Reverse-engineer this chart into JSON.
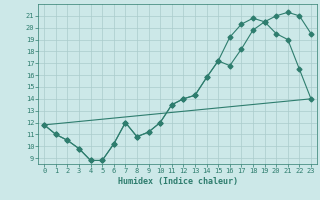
{
  "xlabel": "Humidex (Indice chaleur)",
  "bg_color": "#cce8e8",
  "grid_color": "#aacccc",
  "line_color": "#2e7d6e",
  "xlim": [
    -0.5,
    23.5
  ],
  "ylim": [
    8.5,
    22.0
  ],
  "xticks": [
    0,
    1,
    2,
    3,
    4,
    5,
    6,
    7,
    8,
    9,
    10,
    11,
    12,
    13,
    14,
    15,
    16,
    17,
    18,
    19,
    20,
    21,
    22,
    23
  ],
  "yticks": [
    9,
    10,
    11,
    12,
    13,
    14,
    15,
    16,
    17,
    18,
    19,
    20,
    21
  ],
  "line1_x": [
    0,
    1,
    2,
    3,
    4,
    5,
    6,
    7,
    8,
    9,
    10,
    11,
    12,
    13,
    14,
    15,
    16,
    17,
    18,
    19,
    20,
    21,
    22,
    23
  ],
  "line1_y": [
    11.8,
    11.0,
    10.5,
    9.8,
    8.8,
    8.8,
    10.2,
    12.0,
    10.8,
    11.2,
    12.0,
    13.5,
    14.0,
    14.3,
    15.8,
    17.2,
    16.8,
    18.2,
    19.8,
    20.5,
    21.0,
    21.3,
    21.0,
    19.5
  ],
  "line2_x": [
    0,
    1,
    2,
    3,
    4,
    5,
    6,
    7,
    8,
    9,
    10,
    11,
    12,
    13,
    14,
    15,
    16,
    17,
    18,
    19,
    20,
    21,
    22,
    23
  ],
  "line2_y": [
    11.8,
    11.0,
    10.5,
    9.8,
    8.8,
    8.8,
    10.2,
    12.0,
    10.8,
    11.2,
    12.0,
    13.5,
    14.0,
    14.3,
    15.8,
    17.2,
    19.2,
    20.3,
    20.8,
    20.5,
    19.5,
    19.0,
    16.5,
    14.0
  ],
  "line3_x": [
    0,
    23
  ],
  "line3_y": [
    11.8,
    14.0
  ],
  "marker": "D",
  "marker_size": 2.5,
  "linewidth": 0.8
}
